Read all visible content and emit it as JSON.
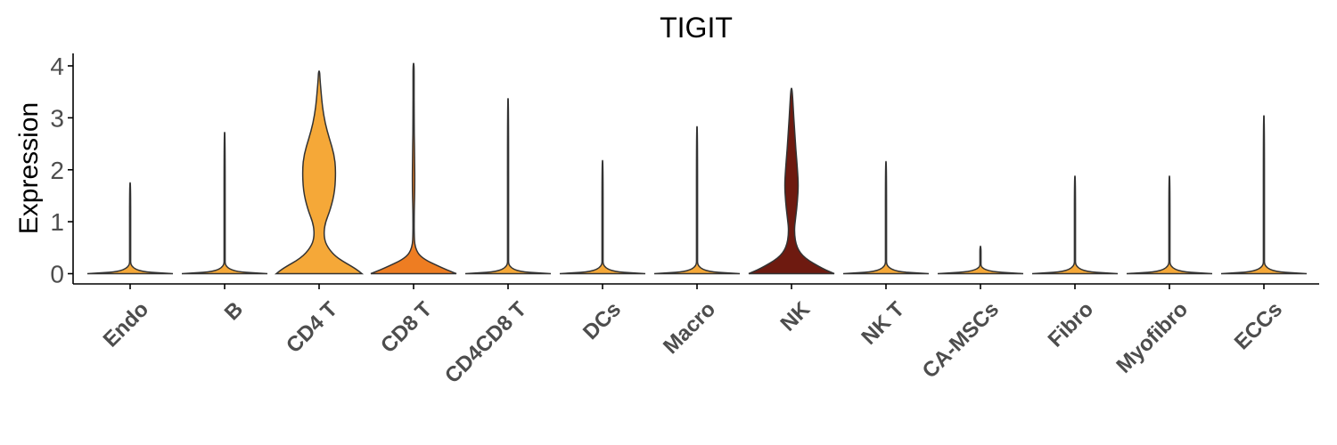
{
  "chart_data": {
    "type": "violin",
    "title": "TIGIT",
    "ylabel": "Expression",
    "xlabel": "",
    "ylim": [
      -0.2,
      4.25
    ],
    "yticks": [
      0,
      1,
      2,
      3,
      4
    ],
    "categories": [
      "Endo",
      "B",
      "CD4 T",
      "CD8 T",
      "CD4CD8 T",
      "DCs",
      "Macro",
      "NK",
      "NK T",
      "CA-MSCs",
      "Fibro",
      "Myofibro",
      "ECCs"
    ],
    "colors": [
      "#f5a838",
      "#f5a838",
      "#f5a838",
      "#ee7d22",
      "#f5a838",
      "#f5a838",
      "#f5a838",
      "#6e1a10",
      "#f5a838",
      "#f5a838",
      "#f5a838",
      "#f5a838",
      "#f5a838"
    ],
    "max_values": [
      1.75,
      2.72,
      3.9,
      4.05,
      3.37,
      2.18,
      2.83,
      3.57,
      2.16,
      0.53,
      1.88,
      1.88,
      3.04
    ],
    "density_profiles": [
      [
        [
          0,
          1
        ],
        [
          0.05,
          0.005
        ],
        [
          0.4,
          0.003
        ],
        [
          1.75,
          0.002
        ]
      ],
      [
        [
          0,
          1
        ],
        [
          0.05,
          0.005
        ],
        [
          0.4,
          0.003
        ],
        [
          2.72,
          0.002
        ]
      ],
      [
        [
          0,
          1.0
        ],
        [
          0.1,
          0.85
        ],
        [
          0.3,
          0.42
        ],
        [
          0.5,
          0.2
        ],
        [
          0.7,
          0.11
        ],
        [
          0.95,
          0.13
        ],
        [
          1.25,
          0.27
        ],
        [
          1.6,
          0.37
        ],
        [
          2.0,
          0.39
        ],
        [
          2.3,
          0.35
        ],
        [
          2.6,
          0.24
        ],
        [
          2.9,
          0.14
        ],
        [
          3.2,
          0.08
        ],
        [
          3.5,
          0.045
        ],
        [
          3.75,
          0.02
        ],
        [
          3.9,
          0.0
        ]
      ],
      [
        [
          0,
          1.0
        ],
        [
          0.1,
          0.7
        ],
        [
          0.3,
          0.18
        ],
        [
          0.5,
          0.03
        ],
        [
          0.8,
          0.01
        ],
        [
          1.2,
          0.015
        ],
        [
          1.7,
          0.03
        ],
        [
          2.2,
          0.025
        ],
        [
          2.7,
          0.015
        ],
        [
          3.2,
          0.008
        ],
        [
          3.6,
          0.004
        ],
        [
          4.05,
          0.0
        ]
      ],
      [
        [
          0,
          1
        ],
        [
          0.05,
          0.005
        ],
        [
          0.4,
          0.003
        ],
        [
          3.37,
          0.002
        ]
      ],
      [
        [
          0,
          1
        ],
        [
          0.05,
          0.005
        ],
        [
          0.4,
          0.003
        ],
        [
          2.18,
          0.002
        ]
      ],
      [
        [
          0,
          1
        ],
        [
          0.05,
          0.005
        ],
        [
          0.4,
          0.003
        ],
        [
          2.83,
          0.002
        ]
      ],
      [
        [
          0,
          1.0
        ],
        [
          0.1,
          0.72
        ],
        [
          0.3,
          0.3
        ],
        [
          0.5,
          0.12
        ],
        [
          0.8,
          0.06
        ],
        [
          1.1,
          0.1
        ],
        [
          1.4,
          0.14
        ],
        [
          1.7,
          0.16
        ],
        [
          2.0,
          0.14
        ],
        [
          2.4,
          0.1
        ],
        [
          2.8,
          0.07
        ],
        [
          3.2,
          0.04
        ],
        [
          3.57,
          0.0
        ]
      ],
      [
        [
          0,
          1
        ],
        [
          0.05,
          0.005
        ],
        [
          0.4,
          0.003
        ],
        [
          2.16,
          0.002
        ]
      ],
      [
        [
          0,
          1
        ],
        [
          0.05,
          0.005
        ],
        [
          0.3,
          0.003
        ],
        [
          0.53,
          0.002
        ]
      ],
      [
        [
          0,
          1
        ],
        [
          0.05,
          0.005
        ],
        [
          0.4,
          0.003
        ],
        [
          1.88,
          0.002
        ]
      ],
      [
        [
          0,
          1
        ],
        [
          0.05,
          0.005
        ],
        [
          0.4,
          0.003
        ],
        [
          1.88,
          0.002
        ]
      ],
      [
        [
          0,
          1
        ],
        [
          0.05,
          0.005
        ],
        [
          0.4,
          0.003
        ],
        [
          3.04,
          0.002
        ]
      ]
    ],
    "grid": false,
    "legend": "none"
  }
}
